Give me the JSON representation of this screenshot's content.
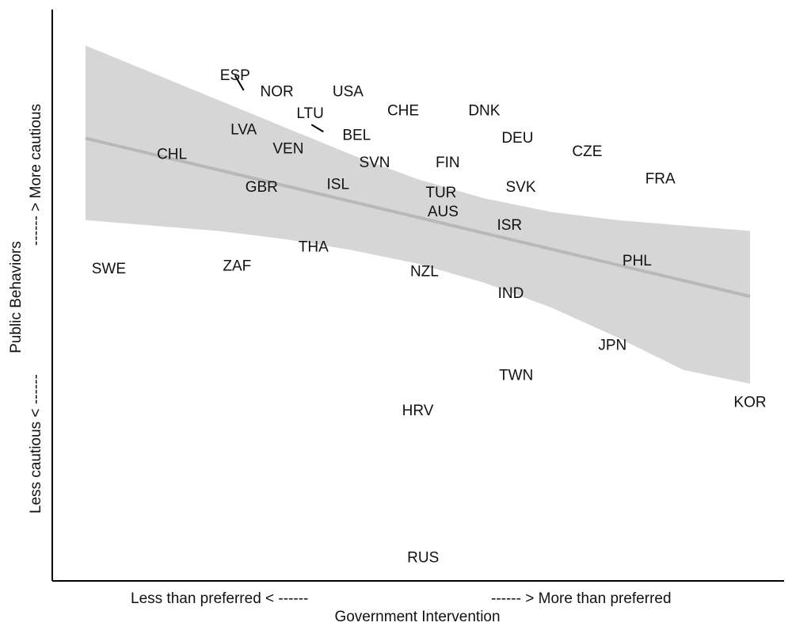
{
  "chart_data": {
    "type": "scatter",
    "xlabel": "Government Intervention",
    "x_low_note": "Less than preferred  < ------",
    "x_high_note": "------ >  More than preferred",
    "ylabel": "Public Behaviors",
    "y_low_note": "Less cautious  < ------",
    "y_high_note": "------ >  More cautious",
    "xlim": [
      0,
      100
    ],
    "ylim": [
      0,
      100
    ],
    "grid": false,
    "legend": "none",
    "colors": {
      "band": "#d6d6d6",
      "trend": "#b8b8b8",
      "axis": "#000000",
      "text": "#111111"
    },
    "points": [
      {
        "label": "ESP",
        "x": 22.5,
        "y": 90.5
      },
      {
        "label": "NOR",
        "x": 28.8,
        "y": 87.5
      },
      {
        "label": "USA",
        "x": 39.5,
        "y": 87.5
      },
      {
        "label": "LTU",
        "x": 33.8,
        "y": 83.5
      },
      {
        "label": "CHE",
        "x": 47.8,
        "y": 84.0
      },
      {
        "label": "DNK",
        "x": 60.0,
        "y": 84.0
      },
      {
        "label": "LVA",
        "x": 23.8,
        "y": 80.5
      },
      {
        "label": "BEL",
        "x": 40.8,
        "y": 79.5
      },
      {
        "label": "DEU",
        "x": 65.0,
        "y": 79.0
      },
      {
        "label": "VEN",
        "x": 30.5,
        "y": 77.0
      },
      {
        "label": "CHL",
        "x": 13.0,
        "y": 76.0
      },
      {
        "label": "CZE",
        "x": 75.5,
        "y": 76.5
      },
      {
        "label": "SVN",
        "x": 43.5,
        "y": 74.5
      },
      {
        "label": "FIN",
        "x": 54.5,
        "y": 74.5
      },
      {
        "label": "FRA",
        "x": 86.5,
        "y": 71.5
      },
      {
        "label": "GBR",
        "x": 26.5,
        "y": 70.0
      },
      {
        "label": "ISL",
        "x": 38.0,
        "y": 70.5
      },
      {
        "label": "TUR",
        "x": 53.5,
        "y": 69.0
      },
      {
        "label": "SVK",
        "x": 65.5,
        "y": 70.0
      },
      {
        "label": "AUS",
        "x": 53.8,
        "y": 65.5
      },
      {
        "label": "ISR",
        "x": 63.8,
        "y": 63.0
      },
      {
        "label": "THA",
        "x": 34.3,
        "y": 59.0
      },
      {
        "label": "ZAF",
        "x": 22.8,
        "y": 55.5
      },
      {
        "label": "SWE",
        "x": 3.5,
        "y": 55.0
      },
      {
        "label": "PHL",
        "x": 83.0,
        "y": 56.5
      },
      {
        "label": "NZL",
        "x": 51.0,
        "y": 54.5
      },
      {
        "label": "IND",
        "x": 64.0,
        "y": 50.5
      },
      {
        "label": "JPN",
        "x": 79.3,
        "y": 41.0
      },
      {
        "label": "TWN",
        "x": 64.8,
        "y": 35.5
      },
      {
        "label": "HRV",
        "x": 50.0,
        "y": 29.0
      },
      {
        "label": "KOR",
        "x": 100.0,
        "y": 30.5
      },
      {
        "label": "RUS",
        "x": 50.8,
        "y": 2.0
      }
    ],
    "trend": {
      "x": [
        0,
        100
      ],
      "y": [
        79.0,
        50.0
      ]
    },
    "confidence_band": {
      "x": [
        0,
        10,
        20,
        30,
        40,
        50,
        60,
        70,
        80,
        90,
        100
      ],
      "upper": [
        96.0,
        91.0,
        86.0,
        81.0,
        76.0,
        71.5,
        68.0,
        65.5,
        64.0,
        63.0,
        62.0
      ],
      "lower": [
        64.0,
        63.0,
        62.0,
        60.5,
        58.5,
        56.0,
        52.5,
        48.0,
        42.5,
        36.5,
        34.0
      ]
    },
    "leaders": [
      {
        "label": "ESP",
        "from": [
          22.5,
          90.5
        ],
        "to": [
          23.8,
          87.8
        ]
      },
      {
        "label": "BEL",
        "from": [
          34.0,
          81.5
        ],
        "to": [
          35.8,
          80.2
        ]
      }
    ]
  }
}
